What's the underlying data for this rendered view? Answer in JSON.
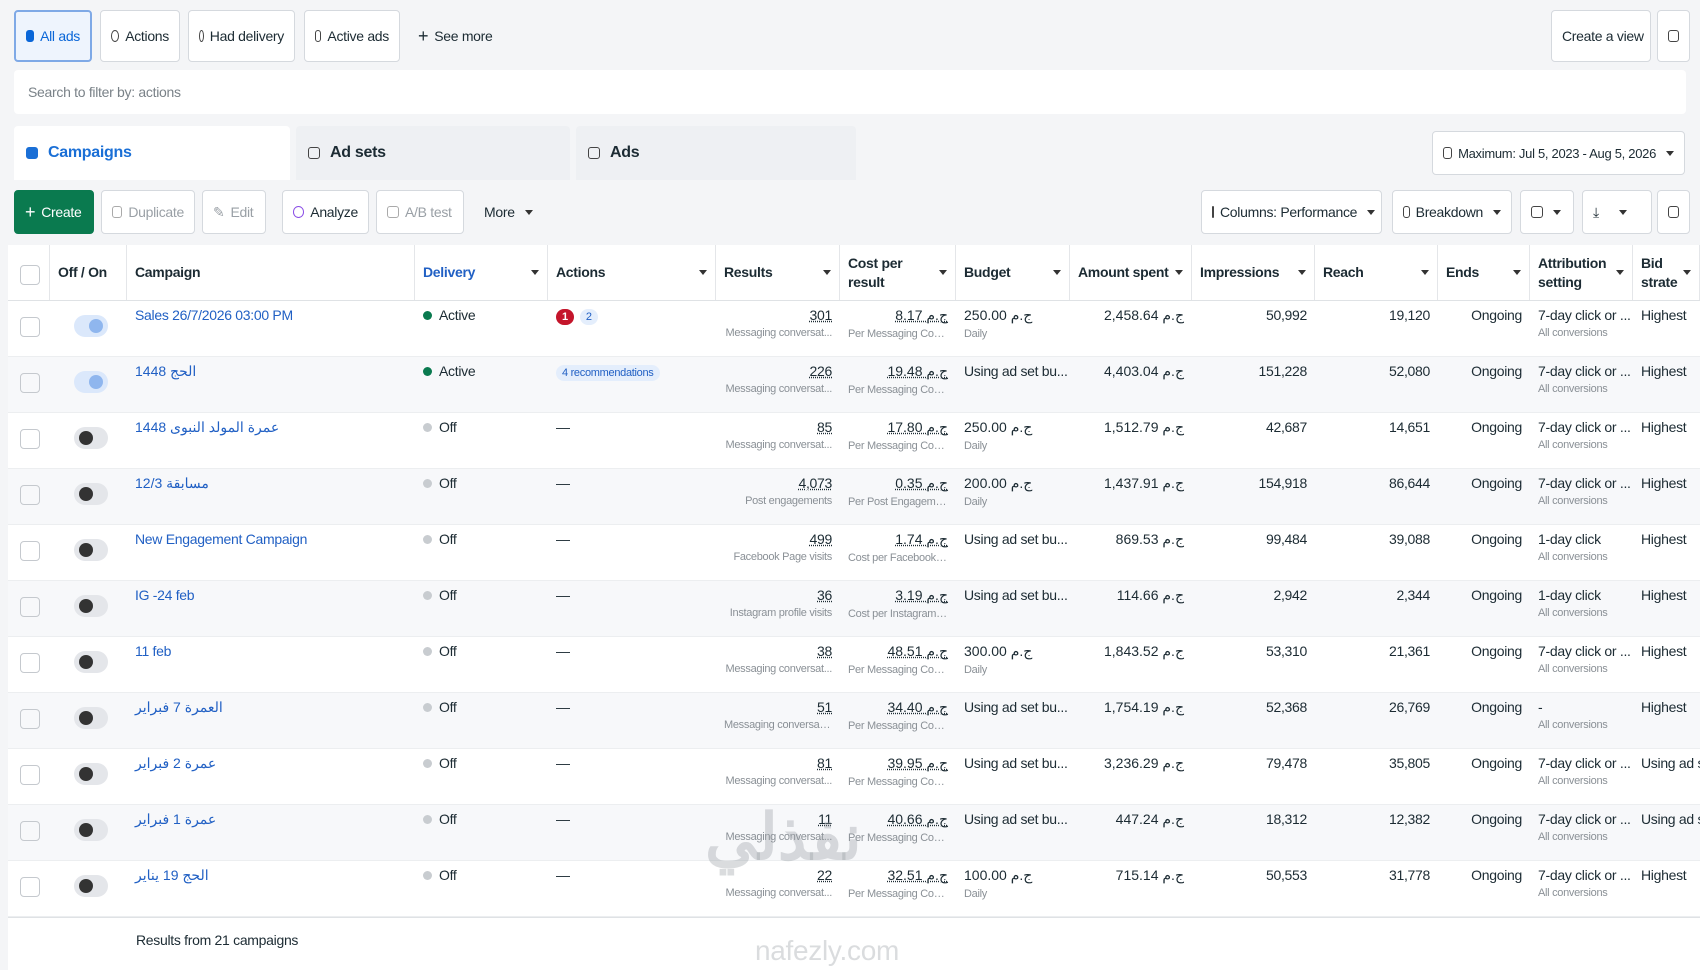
{
  "tabs": [
    "All ads",
    "Actions",
    "Had delivery",
    "Active ads",
    "See more"
  ],
  "create_view": "Create a view",
  "search_placeholder": "Search to filter by: actions",
  "levels": [
    "Campaigns",
    "Ad sets",
    "Ads"
  ],
  "date_range": "Maximum: Jul 5, 2023 - Aug 5, 2026",
  "toolbar": {
    "create": "Create",
    "duplicate": "Duplicate",
    "edit": "Edit",
    "analyze": "Analyze",
    "ab_test": "A/B test",
    "more": "More",
    "columns": "Columns: Performance",
    "breakdown": "Breakdown"
  },
  "table": {
    "columns": [
      "Off / On",
      "Campaign",
      "Delivery",
      "Actions",
      "Results",
      "Cost per result",
      "Budget",
      "Amount spent",
      "Impressions",
      "Reach",
      "Ends",
      "Attribution setting",
      "Bid strate"
    ],
    "rows": [
      {
        "on": true,
        "campaign": "Sales 26/7/2026 03:00 PM",
        "delivery": "Active",
        "actions": [
          {
            "text": "1",
            "kind": "error"
          },
          {
            "text": "2",
            "kind": "recommendation"
          }
        ],
        "results": "301",
        "results_sub": "Messaging conversat...",
        "cost": "8.17 ج.م",
        "cost_sub": "Per Messaging Conve...",
        "budget": "250.00 ج.م",
        "budget_sub": "Daily",
        "spent": "2,458.64 ج.م",
        "impressions": "50,992",
        "reach": "19,120",
        "ends": "Ongoing",
        "attribution": "7-day click or ...",
        "attribution_sub": "All conversions",
        "bid": "Highest"
      },
      {
        "on": true,
        "campaign": "الحج 1448",
        "delivery": "Active",
        "actions": [
          {
            "text": "4 recommendations",
            "kind": "recommendation"
          }
        ],
        "results": "226",
        "results_sub": "Messaging conversat...",
        "cost": "19.48 ج.م",
        "cost_sub": "Per Messaging Conve...",
        "budget": "Using ad set bu...",
        "spent": "4,403.04 ج.م",
        "impressions": "151,228",
        "reach": "52,080",
        "ends": "Ongoing",
        "attribution": "7-day click or ...",
        "attribution_sub": "All conversions",
        "bid": "Highest"
      },
      {
        "on": false,
        "campaign": "عمرة المولد النبوى 1448",
        "delivery": "Off",
        "actions": [
          {
            "text": "—",
            "kind": "none"
          }
        ],
        "results": "85",
        "results_sub": "Messaging conversat...",
        "cost": "17.80 ج.م",
        "cost_sub": "Per Messaging Conve...",
        "budget": "250.00 ج.م",
        "budget_sub": "Daily",
        "spent": "1,512.79 ج.م",
        "impressions": "42,687",
        "reach": "14,651",
        "ends": "Ongoing",
        "attribution": "7-day click or ...",
        "attribution_sub": "All conversions",
        "bid": "Highest"
      },
      {
        "on": false,
        "campaign": "مسابقة 12/3",
        "delivery": "Off",
        "actions": [
          {
            "text": "—",
            "kind": "none"
          }
        ],
        "results": "4,073",
        "results_sub": "Post engagements",
        "cost": "0.35 ج.م",
        "cost_sub": "Per Post Engagement",
        "budget": "200.00 ج.م",
        "budget_sub": "Daily",
        "spent": "1,437.91 ج.م",
        "impressions": "154,918",
        "reach": "86,644",
        "ends": "Ongoing",
        "attribution": "7-day click or ...",
        "attribution_sub": "All conversions",
        "bid": "Highest"
      },
      {
        "on": false,
        "campaign": "New Engagement Campaign",
        "delivery": "Off",
        "actions": [
          {
            "text": "—",
            "kind": "none"
          }
        ],
        "results": "499",
        "results_sub": "Facebook Page visits",
        "cost": "1.74 ج.م",
        "cost_sub": "Cost per Facebook Pa...",
        "budget": "Using ad set bu...",
        "spent": "869.53 ج.م",
        "impressions": "99,484",
        "reach": "39,088",
        "ends": "Ongoing",
        "attribution": "1-day click",
        "attribution_sub": "All conversions",
        "bid": "Highest"
      },
      {
        "on": false,
        "campaign": "IG -24 feb",
        "delivery": "Off",
        "actions": [
          {
            "text": "—",
            "kind": "none"
          }
        ],
        "results": "36",
        "results_sub": "Instagram profile visits",
        "cost": "3.19 ج.م",
        "cost_sub": "Cost per Instagram pr...",
        "budget": "Using ad set bu...",
        "spent": "114.66 ج.م",
        "impressions": "2,942",
        "reach": "2,344",
        "ends": "Ongoing",
        "attribution": "1-day click",
        "attribution_sub": "All conversions",
        "bid": "Highest"
      },
      {
        "on": false,
        "campaign": "11 feb",
        "delivery": "Off",
        "actions": [
          {
            "text": "—",
            "kind": "none"
          }
        ],
        "results": "38",
        "results_sub": "Messaging conversat...",
        "cost": "48.51 ج.م",
        "cost_sub": "Per Messaging Conve...",
        "budget": "300.00 ج.م",
        "budget_sub": "Daily",
        "spent": "1,843.52 ج.م",
        "impressions": "53,310",
        "reach": "21,361",
        "ends": "Ongoing",
        "attribution": "7-day click or ...",
        "attribution_sub": "All conversions",
        "bid": "Highest"
      },
      {
        "on": false,
        "campaign": "العمرة 7 فبراير",
        "delivery": "Off",
        "actions": [
          {
            "text": "—",
            "kind": "none"
          }
        ],
        "results": "51",
        "results_sub": "Messaging conversati...",
        "cost": "34.40 ج.م",
        "cost_sub": "Per Messaging Conve...",
        "budget": "Using ad set bu...",
        "spent": "1,754.19 ج.م",
        "impressions": "52,368",
        "reach": "26,769",
        "ends": "Ongoing",
        "attribution": "-",
        "attribution_sub": "All conversions",
        "bid": "Highest"
      },
      {
        "on": false,
        "campaign": "عمرة 2 فبراير",
        "delivery": "Off",
        "actions": [
          {
            "text": "—",
            "kind": "none"
          }
        ],
        "results": "81",
        "results_sub": "Messaging conversat...",
        "cost": "39.95 ج.م",
        "cost_sub": "Per Messaging Conve...",
        "budget": "Using ad set bu...",
        "spent": "3,236.29 ج.م",
        "impressions": "79,478",
        "reach": "35,805",
        "ends": "Ongoing",
        "attribution": "7-day click or ...",
        "attribution_sub": "All conversions",
        "bid": "Using ad s"
      },
      {
        "on": false,
        "campaign": "عمرة 1 فبراير",
        "delivery": "Off",
        "actions": [
          {
            "text": "—",
            "kind": "none"
          }
        ],
        "results": "11",
        "results_sub": "Messaging conversat...",
        "cost": "40.66 ج.م",
        "cost_sub": "Per Messaging Conve...",
        "budget": "Using ad set bu...",
        "spent": "447.24 ج.م",
        "impressions": "18,312",
        "reach": "12,382",
        "ends": "Ongoing",
        "attribution": "7-day click or ...",
        "attribution_sub": "All conversions",
        "bid": "Using ad s"
      },
      {
        "on": false,
        "campaign": "الحج 19 يناير",
        "delivery": "Off",
        "actions": [
          {
            "text": "—",
            "kind": "none"
          }
        ],
        "results": "22",
        "results_sub": "Messaging conversat...",
        "cost": "32.51 ج.م",
        "cost_sub": "Per Messaging Conve...",
        "budget": "100.00 ج.م",
        "budget_sub": "Daily",
        "spent": "715.14 ج.م",
        "impressions": "50,553",
        "reach": "31,778",
        "ends": "Ongoing",
        "attribution": "7-day click or ...",
        "attribution_sub": "All conversions",
        "bid": "Highest"
      }
    ]
  },
  "footer": "Results from 21 campaigns",
  "watermark_logo": "نفذلي",
  "watermark": "nafezly.com"
}
